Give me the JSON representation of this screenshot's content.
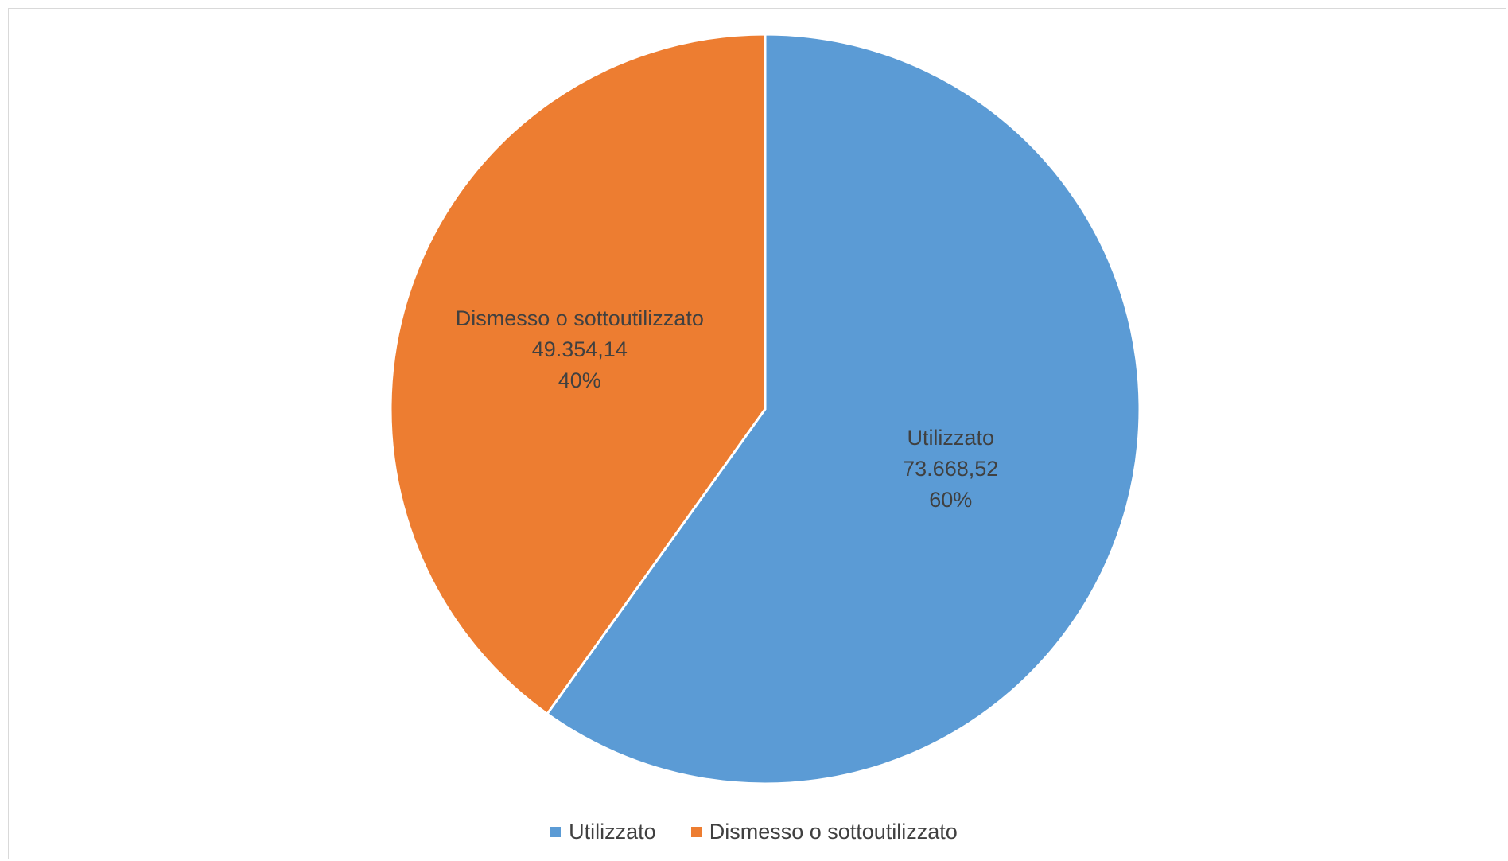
{
  "chart_data": {
    "type": "pie",
    "title": "",
    "categories": [
      "Utilizzato",
      "Dismesso o sottoutilizzato"
    ],
    "values": [
      73668.52,
      49354.14
    ],
    "value_labels": [
      "73.668,52",
      "49.354,14"
    ],
    "percent_labels": [
      "60%",
      "40%"
    ],
    "colors": [
      "#5B9BD5",
      "#ED7D31"
    ],
    "legend_position": "bottom",
    "legend": [
      {
        "label": "Utilizzato",
        "color": "#5B9BD5"
      },
      {
        "label": "Dismesso o sottoutilizzato",
        "color": "#ED7D31"
      }
    ]
  }
}
